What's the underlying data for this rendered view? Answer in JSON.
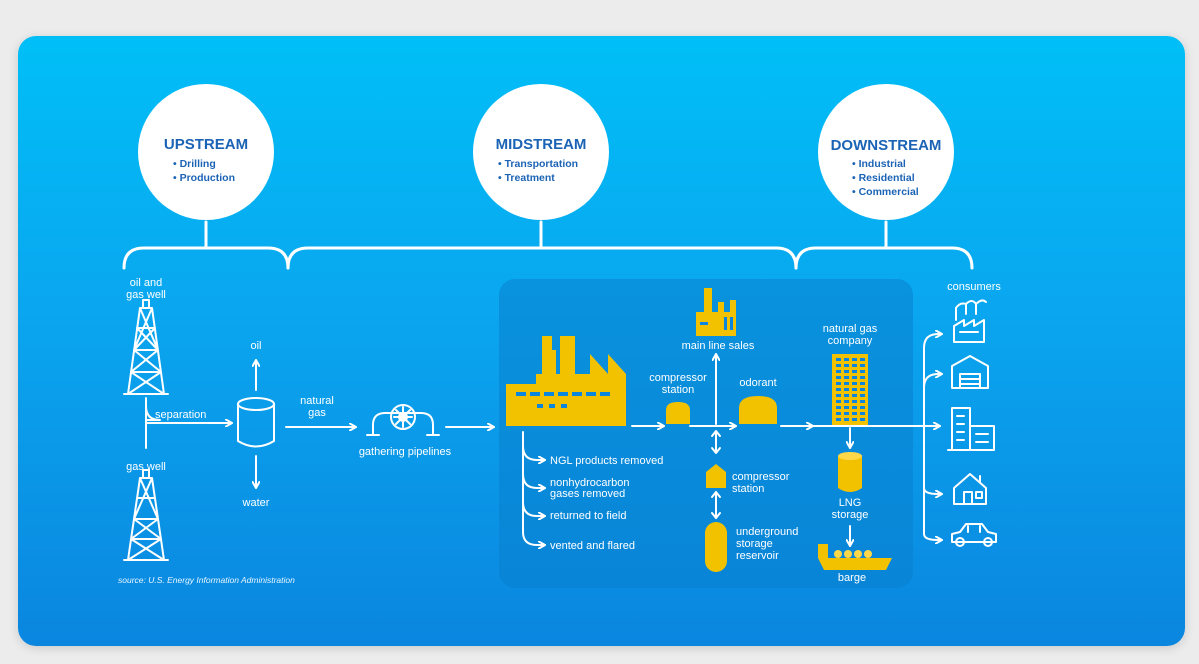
{
  "stages": [
    {
      "title": "UPSTREAM",
      "items": [
        "• Drilling",
        "• Production"
      ]
    },
    {
      "title": "MIDSTREAM",
      "items": [
        "• Transportation",
        "• Treatment"
      ]
    },
    {
      "title": "DOWNSTREAM",
      "items": [
        "• Industrial",
        "• Residential",
        "• Commercial"
      ]
    }
  ],
  "labels": {
    "oil_gas_well": [
      "oil and",
      "gas well"
    ],
    "gas_well": "gas well",
    "separation": "separation",
    "oil": "oil",
    "water": "water",
    "natural_gas": [
      "natural",
      "gas"
    ],
    "gathering_pipelines": "gathering pipelines",
    "main_line_sales": "main line sales",
    "compressor_station_1": [
      "compressor",
      "station"
    ],
    "odorant": "odorant",
    "compressor_station_2": [
      "compressor",
      "station"
    ],
    "ngl_removed": "NGL products removed",
    "nonhydrocarbon": [
      "nonhydrocarbon",
      "gases removed"
    ],
    "returned_to_field": "returned to field",
    "vented_flared": "vented and flared",
    "underground_storage": [
      "underground",
      "storage",
      "reservoir"
    ],
    "natural_gas_company": [
      "natural gas",
      "company"
    ],
    "lng_storage": [
      "LNG",
      "storage"
    ],
    "barge": "barge",
    "consumers": "consumers"
  },
  "source": "source: U.S. Energy Information Administration",
  "colors": {
    "background": "#0aa6ef",
    "accent_yellow": "#f2c200",
    "stage_text": "#1b63b5",
    "line": "#ffffff"
  },
  "icons": [
    "oil-derrick-icon",
    "tank-icon",
    "pipeline-valve-icon",
    "processing-plant-icon",
    "compressor-icon",
    "factory-icon",
    "odorant-tank-icon",
    "underground-reservoir-icon",
    "office-building-icon",
    "lng-tank-icon",
    "barge-icon",
    "industrial-consumer-icon",
    "warehouse-consumer-icon",
    "commercial-building-icon",
    "house-icon",
    "car-icon"
  ]
}
